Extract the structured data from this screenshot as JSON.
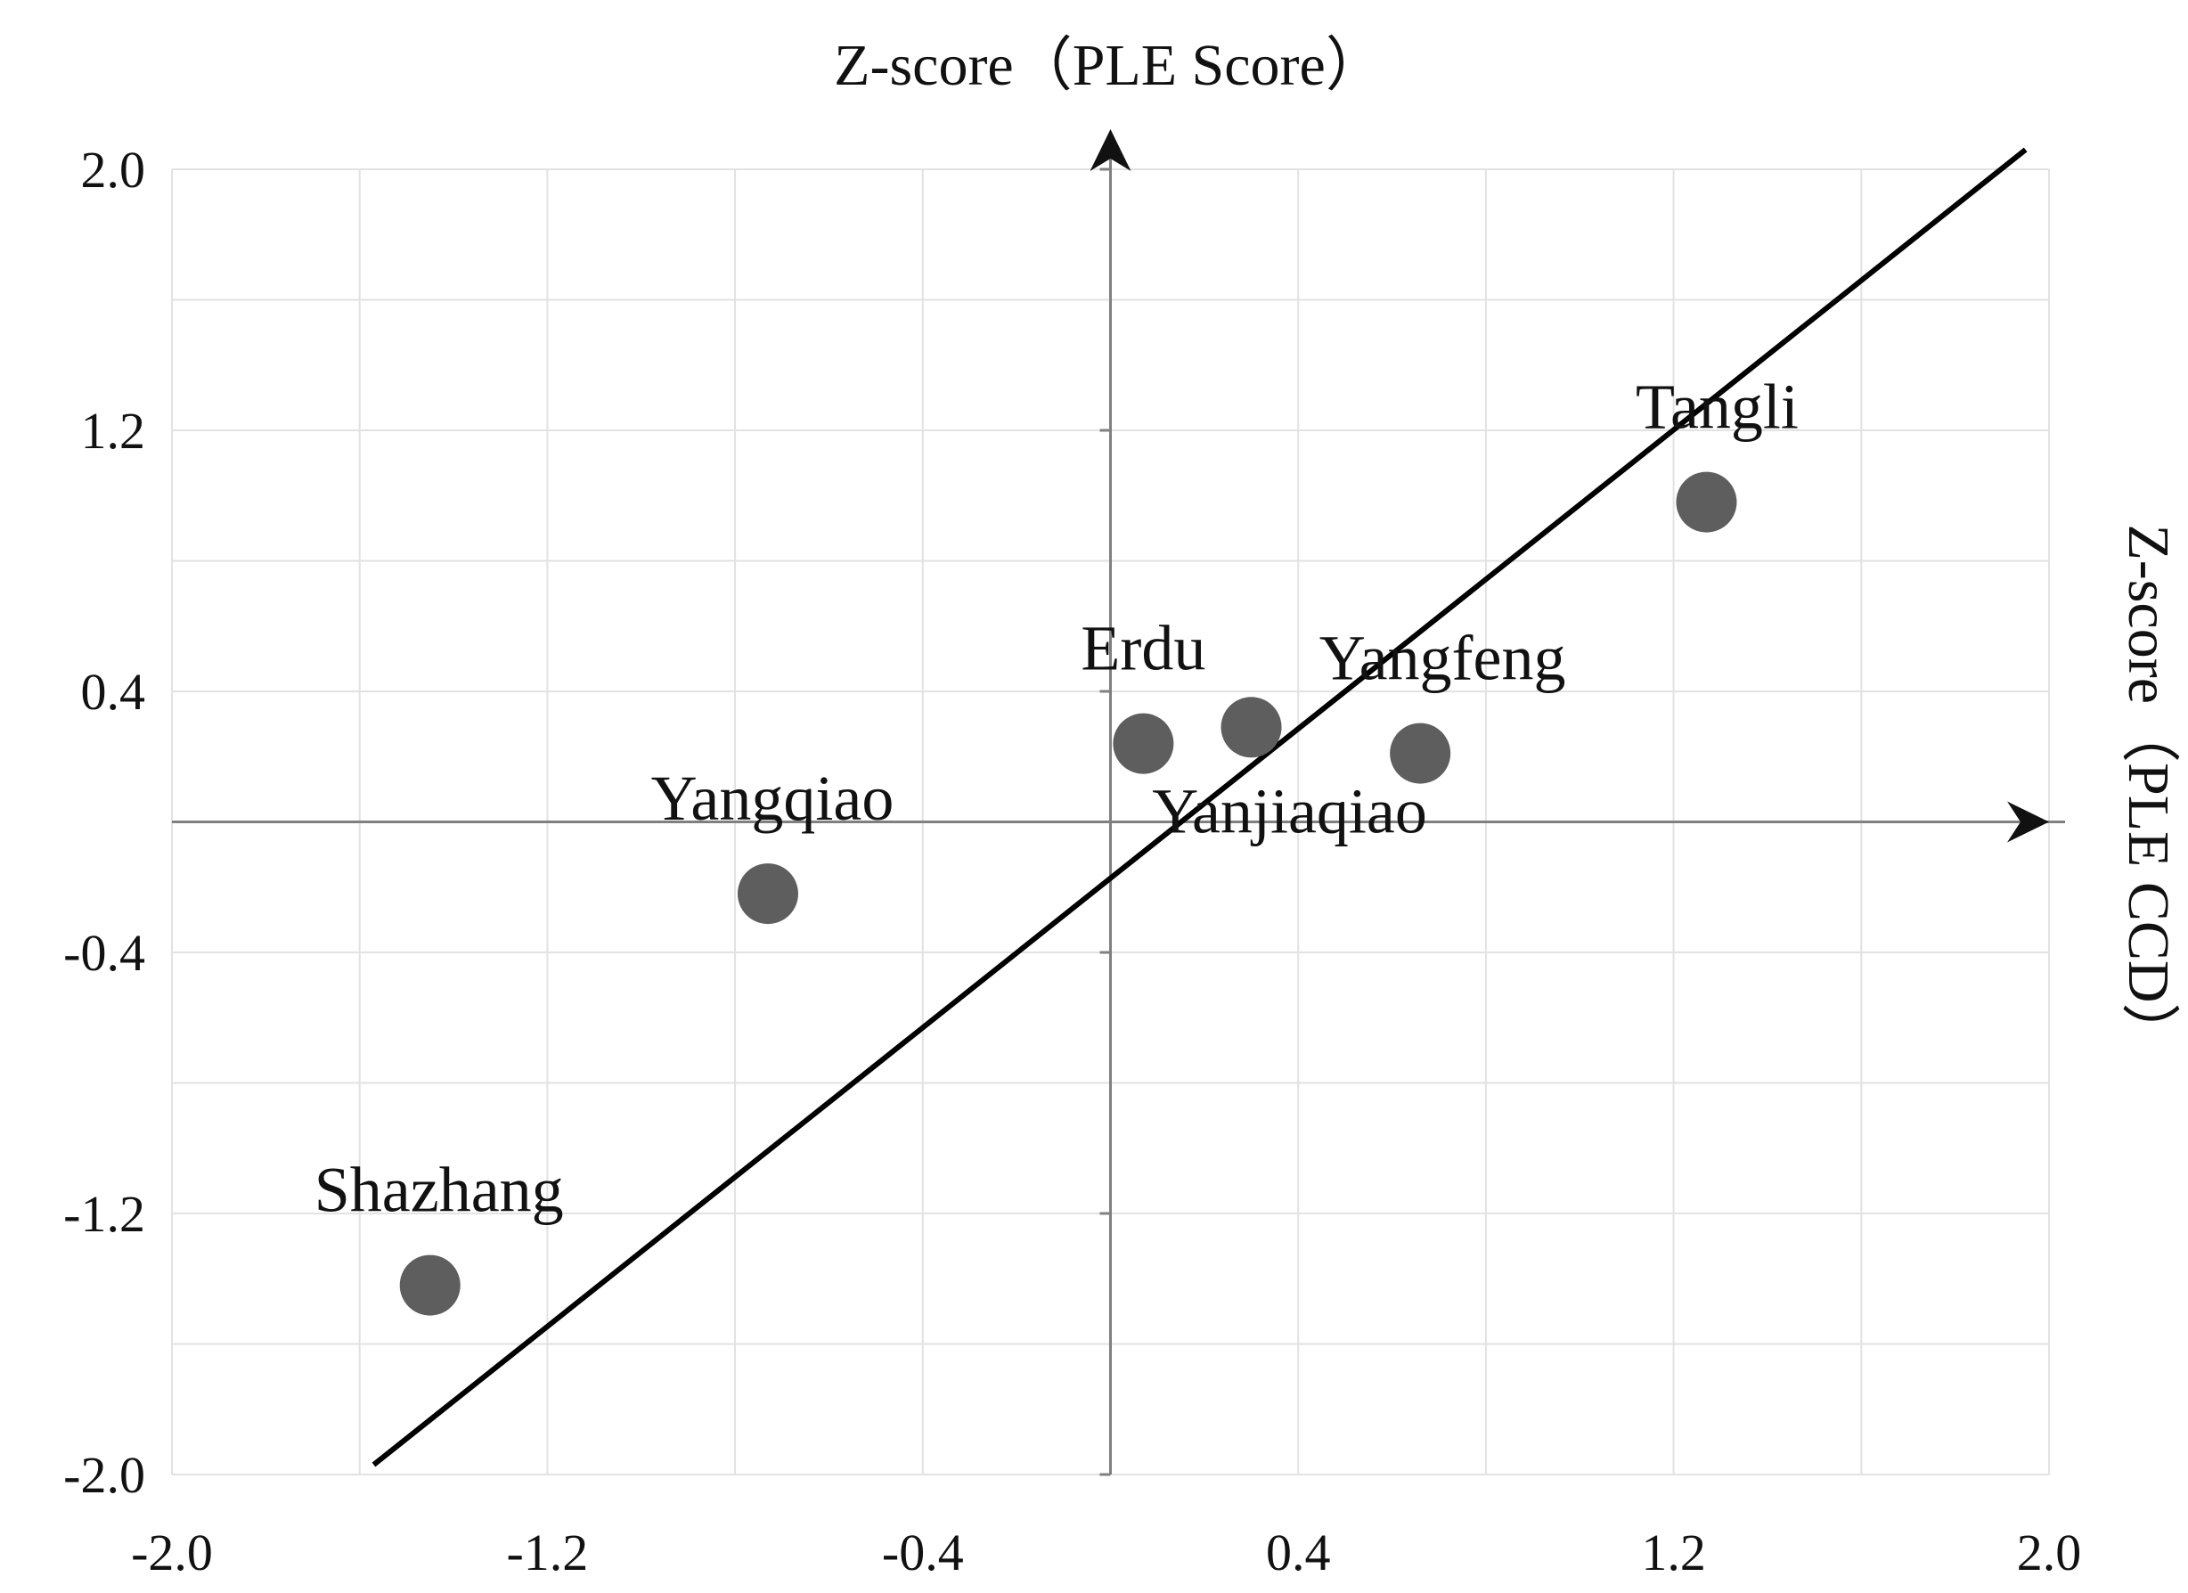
{
  "chart_data": {
    "type": "scatter",
    "title": "",
    "xlabel": "Z-score（PLE CCD）",
    "ylabel": "Z-score（PLE Score）",
    "xlim": [
      -2.0,
      2.0
    ],
    "ylim": [
      -2.0,
      2.0
    ],
    "x_ticks": [
      "-2.0",
      "-1.2",
      "-0.4",
      "0.4",
      "1.2",
      "2.0"
    ],
    "y_ticks": [
      "2.0",
      "1.2",
      "0.4",
      "-0.4",
      "-1.2",
      "-2.0"
    ],
    "x_tick_values": [
      -2.0,
      -1.2,
      -0.4,
      0.4,
      1.2,
      2.0
    ],
    "y_tick_values": [
      2.0,
      1.2,
      0.4,
      -0.4,
      -1.2,
      -2.0
    ],
    "grid": true,
    "point_color": "#5e5e5e",
    "series": [
      {
        "points": [
          {
            "label": "Shazhang",
            "x": -1.45,
            "y": -1.42
          },
          {
            "label": "Yangqiao",
            "x": -0.73,
            "y": -0.22
          },
          {
            "label": "Erdu",
            "x": 0.07,
            "y": 0.24
          },
          {
            "label": "Yanjiaqiao",
            "x": 0.3,
            "y": 0.29
          },
          {
            "label": "Yangfeng",
            "x": 0.66,
            "y": 0.21
          },
          {
            "label": "Tangli",
            "x": 1.27,
            "y": 0.98
          }
        ]
      }
    ],
    "trendline": {
      "x": [
        -1.57,
        1.95
      ],
      "y": [
        -1.97,
        2.06
      ]
    }
  }
}
